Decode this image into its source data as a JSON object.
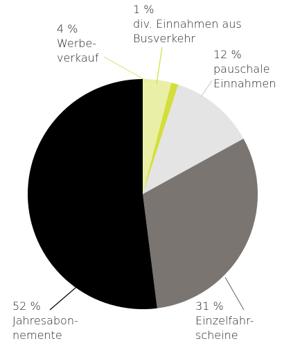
{
  "chart_data": {
    "type": "pie",
    "categories": [
      [
        "Werbe-",
        "verkauf"
      ],
      [
        "div. Einnahmen aus",
        "Busverkehr"
      ],
      [
        "pauschale",
        "Einnahmen"
      ],
      [
        "Einzelfahr-",
        "scheine"
      ],
      [
        "Jahresabon-",
        "nemente"
      ]
    ],
    "values": [
      4,
      1,
      12,
      31,
      52
    ],
    "value_labels": [
      "4 %",
      "1 %",
      "12 %",
      "31 %",
      "52 %"
    ],
    "colors": [
      "#e9efa6",
      "#d3de3a",
      "#e4e4e4",
      "#7a7571",
      "#000000"
    ]
  }
}
